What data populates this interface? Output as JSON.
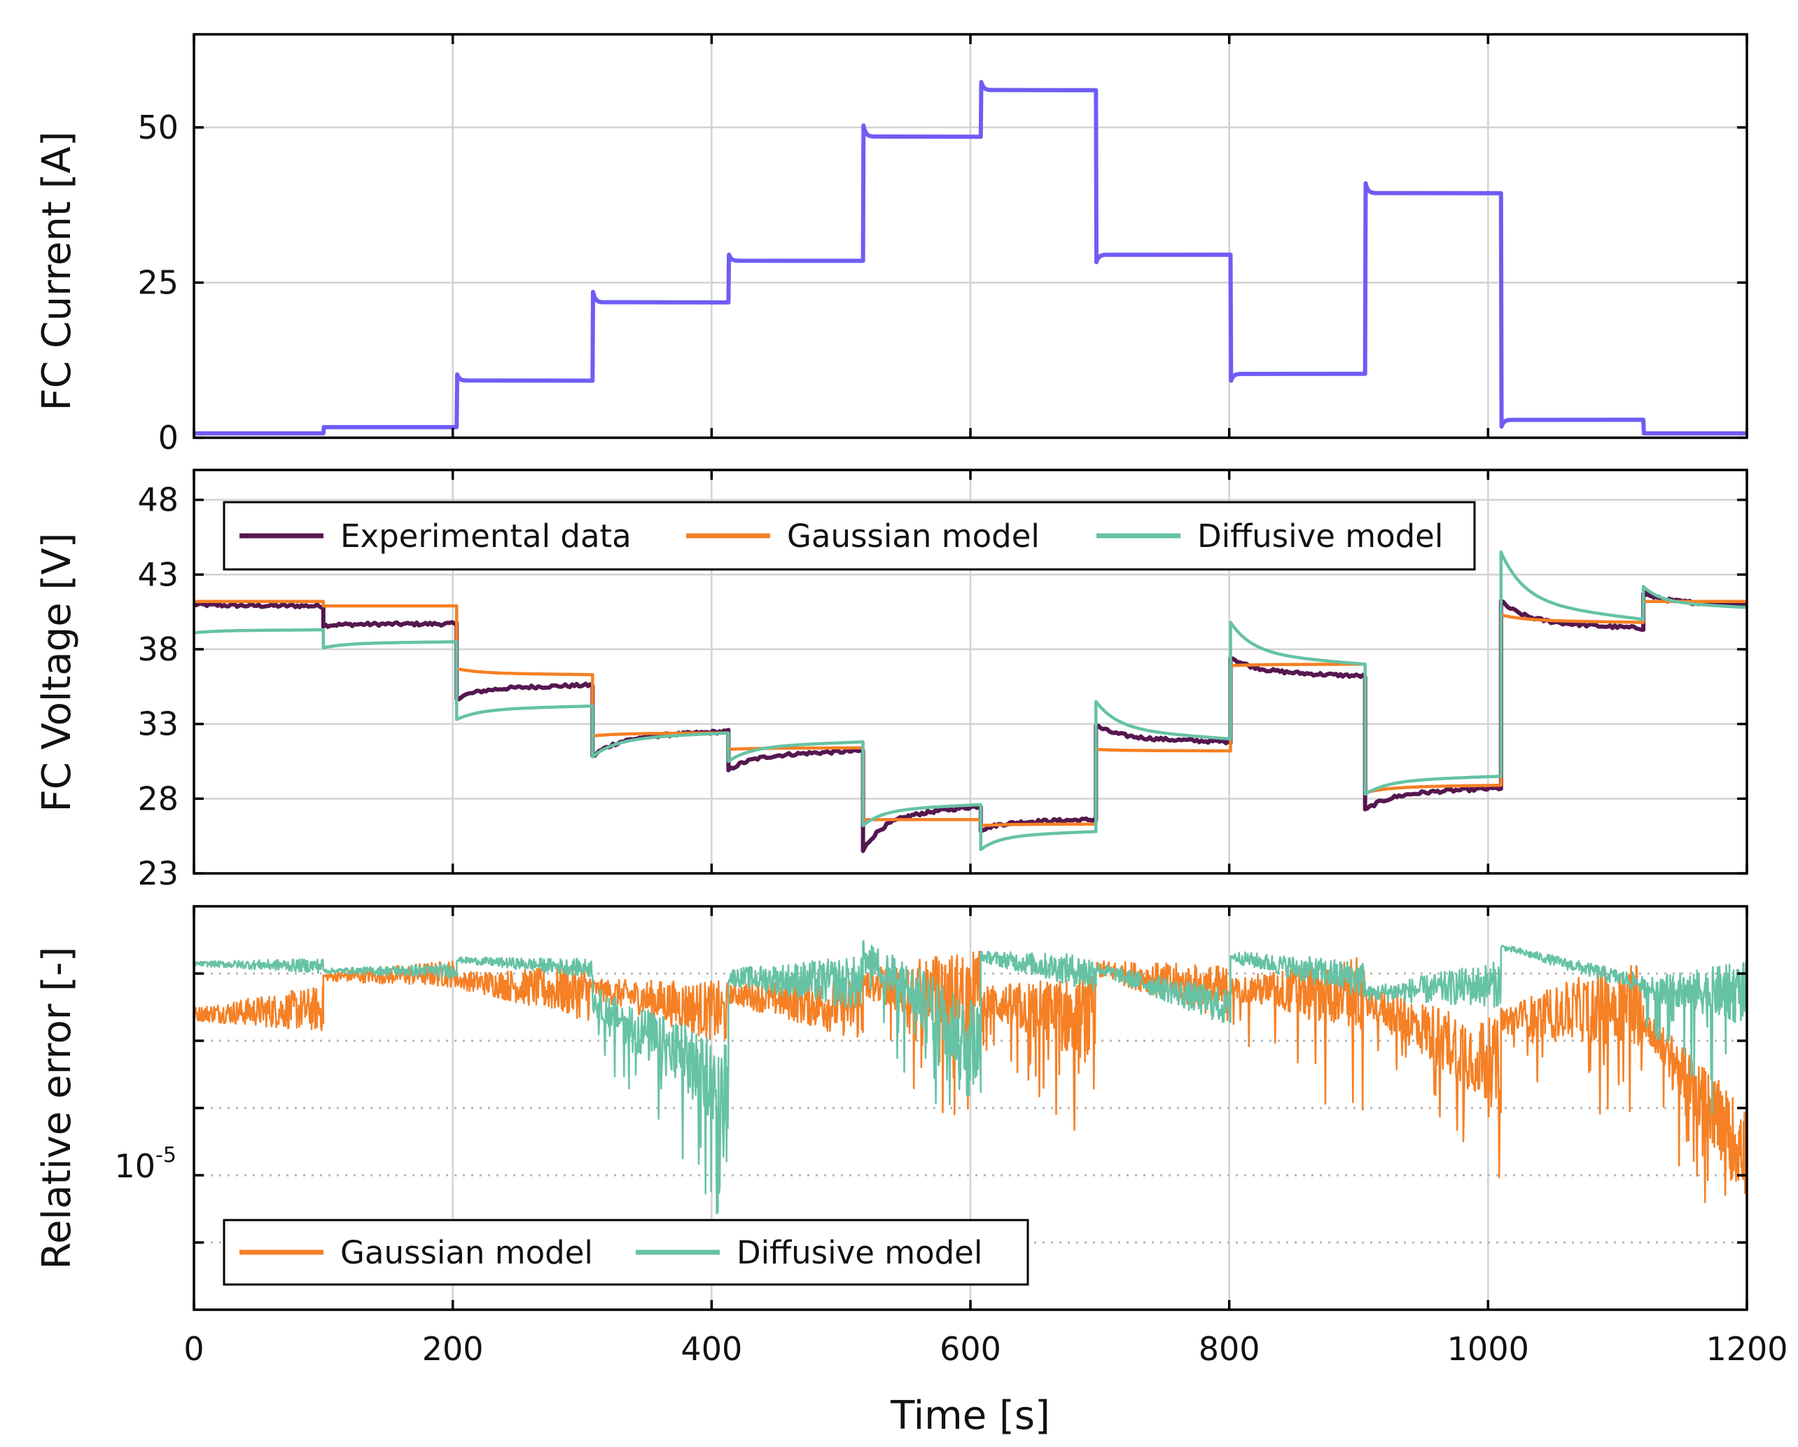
{
  "chart_data": [
    {
      "type": "line",
      "panel": "top",
      "ylabel": "FC Current [A]",
      "xlim": [
        0,
        1200
      ],
      "ylim": [
        0,
        65
      ],
      "xticks": [
        0,
        200,
        400,
        600,
        800,
        1000,
        1200
      ],
      "yticks": [
        0,
        25,
        50
      ],
      "ytick_labels": [
        "0",
        "25",
        "50"
      ],
      "grid": true,
      "series": [
        {
          "name": "FC Current",
          "color": "#6f5cf5",
          "steps": [
            {
              "t0": 0,
              "t1": 100,
              "value": 0.7
            },
            {
              "t0": 100,
              "t1": 203,
              "value": 1.7
            },
            {
              "t0": 203,
              "t1": 308,
              "value": 9.2,
              "overshoot": 10.2
            },
            {
              "t0": 308,
              "t1": 413,
              "value": 21.8,
              "overshoot": 23.5
            },
            {
              "t0": 413,
              "t1": 517,
              "value": 28.5,
              "overshoot": 29.5
            },
            {
              "t0": 517,
              "t1": 608,
              "value": 48.5,
              "overshoot": 50.3
            },
            {
              "t0": 608,
              "t1": 697,
              "value": 56.0,
              "overshoot": 57.3
            },
            {
              "t0": 697,
              "t1": 801,
              "value": 29.5,
              "overshoot": 28.3
            },
            {
              "t0": 801,
              "t1": 905,
              "value": 10.3,
              "overshoot": 9.2
            },
            {
              "t0": 905,
              "t1": 1010,
              "value": 39.4,
              "overshoot": 41.0
            },
            {
              "t0": 1010,
              "t1": 1120,
              "value": 2.9,
              "overshoot": 1.8
            },
            {
              "t0": 1120,
              "t1": 1200,
              "value": 0.7
            }
          ]
        }
      ]
    },
    {
      "type": "line",
      "panel": "middle",
      "ylabel": "FC Voltage [V]",
      "xlim": [
        0,
        1200
      ],
      "ylim": [
        23,
        50
      ],
      "xticks": [
        0,
        200,
        400,
        600,
        800,
        1000,
        1200
      ],
      "yticks": [
        23,
        28,
        33,
        38,
        43,
        48
      ],
      "ytick_labels": [
        "23",
        "28",
        "33",
        "38",
        "43",
        "48"
      ],
      "grid": true,
      "legend": {
        "placement": "top-left",
        "entries": [
          "Experimental data",
          "Gaussian model",
          "Diffusive model"
        ]
      },
      "series": [
        {
          "name": "Experimental data",
          "color": "#55174f",
          "segments": [
            {
              "t0": 0,
              "t1": 100,
              "start": 41.0,
              "end": 40.9
            },
            {
              "t0": 100,
              "t1": 203,
              "start": 39.6,
              "end": 39.7
            },
            {
              "t0": 203,
              "t1": 308,
              "start": 34.7,
              "end": 35.6
            },
            {
              "t0": 308,
              "t1": 413,
              "start": 30.8,
              "end": 32.5
            },
            {
              "t0": 413,
              "t1": 517,
              "start": 29.9,
              "end": 31.2
            },
            {
              "t0": 517,
              "t1": 608,
              "start": 24.5,
              "end": 27.5
            },
            {
              "t0": 608,
              "t1": 697,
              "start": 25.9,
              "end": 26.6
            },
            {
              "t0": 697,
              "t1": 801,
              "start": 32.9,
              "end": 31.8
            },
            {
              "t0": 801,
              "t1": 905,
              "start": 37.5,
              "end": 36.2
            },
            {
              "t0": 905,
              "t1": 1010,
              "start": 27.2,
              "end": 28.7
            },
            {
              "t0": 1010,
              "t1": 1120,
              "start": 41.2,
              "end": 39.4
            },
            {
              "t0": 1120,
              "t1": 1200,
              "start": 41.8,
              "end": 41.0
            }
          ]
        },
        {
          "name": "Gaussian model",
          "color": "#f58025",
          "segments": [
            {
              "t0": 0,
              "t1": 100,
              "start": 41.2,
              "end": 41.2
            },
            {
              "t0": 100,
              "t1": 203,
              "start": 40.9,
              "end": 40.9
            },
            {
              "t0": 203,
              "t1": 308,
              "start": 36.7,
              "end": 36.3
            },
            {
              "t0": 308,
              "t1": 413,
              "start": 32.2,
              "end": 32.4
            },
            {
              "t0": 413,
              "t1": 517,
              "start": 31.3,
              "end": 31.4
            },
            {
              "t0": 517,
              "t1": 608,
              "start": 26.6,
              "end": 26.6
            },
            {
              "t0": 608,
              "t1": 697,
              "start": 26.2,
              "end": 26.3
            },
            {
              "t0": 697,
              "t1": 801,
              "start": 31.3,
              "end": 31.2
            },
            {
              "t0": 801,
              "t1": 905,
              "start": 36.9,
              "end": 37.0
            },
            {
              "t0": 905,
              "t1": 1010,
              "start": 28.4,
              "end": 28.9
            },
            {
              "t0": 1010,
              "t1": 1120,
              "start": 40.3,
              "end": 39.8
            },
            {
              "t0": 1120,
              "t1": 1200,
              "start": 41.2,
              "end": 41.2
            }
          ]
        },
        {
          "name": "Diffusive model",
          "color": "#66c2a5",
          "segments": [
            {
              "t0": 0,
              "t1": 100,
              "start": 39.1,
              "end": 39.3
            },
            {
              "t0": 100,
              "t1": 203,
              "start": 38.1,
              "end": 38.5
            },
            {
              "t0": 203,
              "t1": 308,
              "start": 33.3,
              "end": 34.2
            },
            {
              "t0": 308,
              "t1": 413,
              "start": 30.8,
              "end": 32.4
            },
            {
              "t0": 413,
              "t1": 517,
              "start": 30.5,
              "end": 31.8
            },
            {
              "t0": 517,
              "t1": 608,
              "start": 26.2,
              "end": 27.6
            },
            {
              "t0": 608,
              "t1": 697,
              "start": 24.6,
              "end": 25.8
            },
            {
              "t0": 697,
              "t1": 801,
              "start": 34.5,
              "end": 32.0
            },
            {
              "t0": 801,
              "t1": 905,
              "start": 39.8,
              "end": 37.0
            },
            {
              "t0": 905,
              "t1": 1010,
              "start": 28.3,
              "end": 29.5
            },
            {
              "t0": 1010,
              "t1": 1120,
              "start": 44.5,
              "end": 40.0
            },
            {
              "t0": 1120,
              "t1": 1200,
              "start": 42.2,
              "end": 40.8
            }
          ]
        }
      ]
    },
    {
      "type": "line",
      "panel": "bottom",
      "ylabel": "Relative error [-]",
      "xlabel": "Time [s]",
      "yscale": "log",
      "ylim": [
        1e-07,
        0.1
      ],
      "xlim": [
        0,
        1200
      ],
      "xticks": [
        0,
        200,
        400,
        600,
        800,
        1000,
        1200
      ],
      "xtick_labels": [
        "0",
        "200",
        "400",
        "600",
        "800",
        "1000",
        "1200"
      ],
      "ytick_label": {
        "base": "10",
        "exponent": "-5"
      },
      "grid": true,
      "legend": {
        "placement": "bottom-left",
        "entries": [
          "Gaussian model",
          "Diffusive model"
        ]
      },
      "series": [
        {
          "name": "Gaussian model",
          "color": "#f58025",
          "segments": [
            {
              "t0": 0,
              "t1": 100,
              "start": 0.0025,
              "end": 0.003,
              "noise": 0.25,
              "dips": false
            },
            {
              "t0": 100,
              "t1": 203,
              "start": 0.009,
              "end": 0.01,
              "noise": 0.15,
              "dips": false
            },
            {
              "t0": 203,
              "t1": 308,
              "start": 0.008,
              "end": 0.005,
              "noise": 0.3,
              "dips": false
            },
            {
              "t0": 308,
              "t1": 413,
              "start": 0.006,
              "end": 0.0025,
              "noise": 0.35,
              "dips": false
            },
            {
              "t0": 413,
              "t1": 517,
              "start": 0.005,
              "end": 0.003,
              "noise": 0.35,
              "dips": false
            },
            {
              "t0": 517,
              "t1": 608,
              "start": 0.007,
              "end": 0.005,
              "noise": 0.5,
              "dips": true
            },
            {
              "t0": 608,
              "t1": 697,
              "start": 0.004,
              "end": 0.002,
              "noise": 0.5,
              "dips": true
            },
            {
              "t0": 697,
              "t1": 801,
              "start": 0.012,
              "end": 0.005,
              "noise": 0.3,
              "dips": false
            },
            {
              "t0": 801,
              "t1": 905,
              "start": 0.006,
              "end": 0.005,
              "noise": 0.4,
              "dips": true
            },
            {
              "t0": 905,
              "t1": 1010,
              "start": 0.004,
              "end": 0.0004,
              "noise": 0.5,
              "dips": true
            },
            {
              "t0": 1010,
              "t1": 1120,
              "start": 0.002,
              "end": 0.004,
              "noise": 0.5,
              "dips": true
            },
            {
              "t0": 1120,
              "t1": 1200,
              "start": 0.002,
              "end": 2e-05,
              "noise": 0.5,
              "dips": true
            }
          ]
        },
        {
          "name": "Diffusive model",
          "color": "#66c2a5",
          "segments": [
            {
              "t0": 0,
              "t1": 100,
              "start": 0.014,
              "end": 0.013,
              "noise": 0.08,
              "dips": false
            },
            {
              "t0": 100,
              "t1": 203,
              "start": 0.011,
              "end": 0.011,
              "noise": 0.08,
              "dips": false
            },
            {
              "t0": 203,
              "t1": 308,
              "start": 0.016,
              "end": 0.012,
              "noise": 0.1,
              "dips": false
            },
            {
              "t0": 308,
              "t1": 413,
              "start": 0.004,
              "end": 0.0002,
              "noise": 0.5,
              "dips": true
            },
            {
              "t0": 413,
              "t1": 517,
              "start": 0.009,
              "end": 0.007,
              "noise": 0.3,
              "dips": false
            },
            {
              "t0": 517,
              "t1": 608,
              "start": 0.02,
              "end": 0.0008,
              "noise": 0.5,
              "dips": true
            },
            {
              "t0": 608,
              "t1": 697,
              "start": 0.018,
              "end": 0.01,
              "noise": 0.2,
              "dips": false
            },
            {
              "t0": 697,
              "t1": 801,
              "start": 0.012,
              "end": 0.003,
              "noise": 0.2,
              "dips": false
            },
            {
              "t0": 801,
              "t1": 905,
              "start": 0.018,
              "end": 0.008,
              "noise": 0.2,
              "dips": false
            },
            {
              "t0": 905,
              "t1": 1010,
              "start": 0.005,
              "end": 0.007,
              "noise": 0.25,
              "dips": false
            },
            {
              "t0": 1010,
              "t1": 1120,
              "start": 0.025,
              "end": 0.007,
              "noise": 0.1,
              "dips": false
            },
            {
              "t0": 1120,
              "t1": 1200,
              "start": 0.006,
              "end": 0.005,
              "noise": 0.35,
              "dips": true
            }
          ]
        }
      ]
    }
  ]
}
